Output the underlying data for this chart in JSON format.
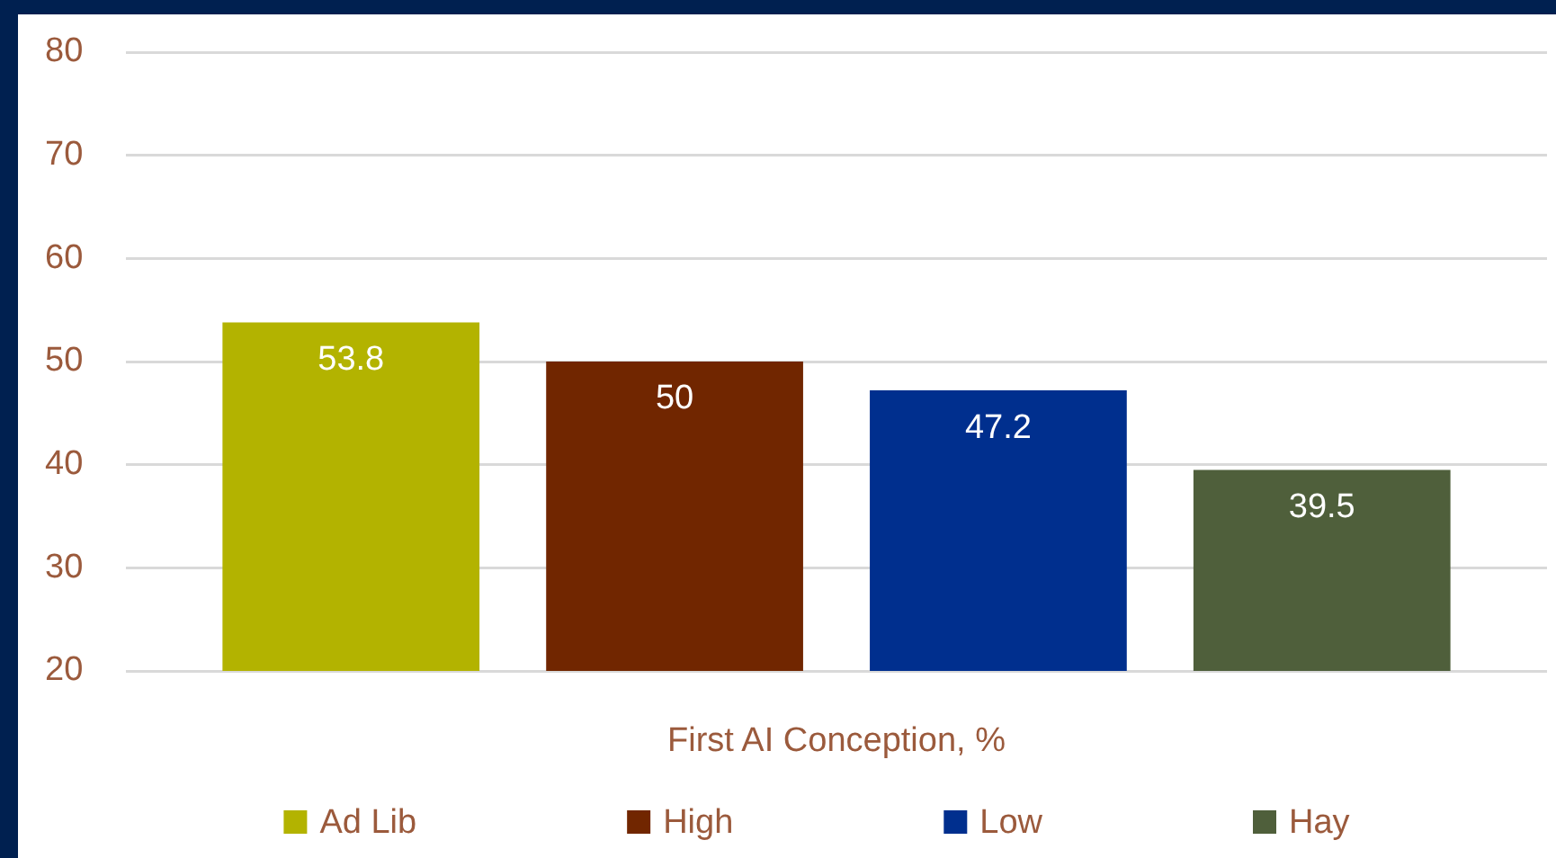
{
  "chart_data": {
    "type": "bar",
    "categories": [
      "First AI Conception, %"
    ],
    "series": [
      {
        "name": "Ad Lib",
        "color": "#b3b300",
        "values": [
          53.8
        ]
      },
      {
        "name": "High",
        "color": "#712600",
        "values": [
          50
        ]
      },
      {
        "name": "Low",
        "color": "#002f8e",
        "values": [
          47.2
        ]
      },
      {
        "name": "Hay",
        "color": "#4f5f3b",
        "values": [
          39.5
        ]
      }
    ],
    "ylim": [
      20,
      80
    ],
    "yticks": [
      20,
      30,
      40,
      50,
      60,
      70,
      80
    ],
    "grid": "y",
    "legend": "bottom",
    "data_labels": true
  }
}
